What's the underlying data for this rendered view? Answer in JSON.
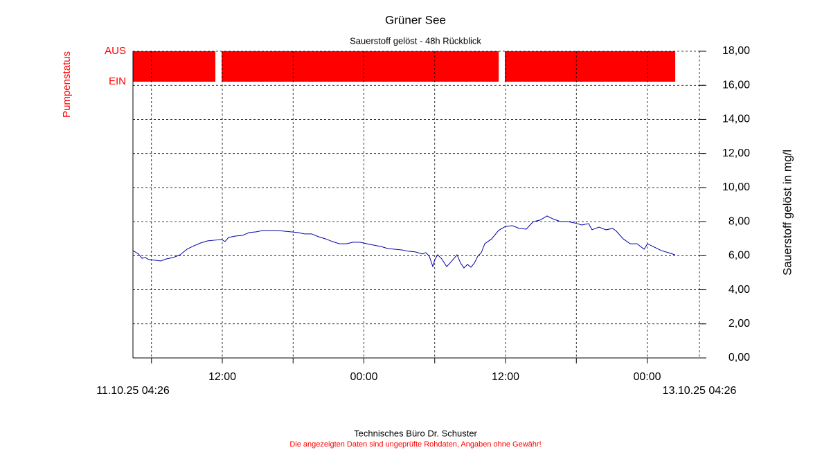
{
  "chart_data": {
    "type": "line",
    "title": "Grüner See",
    "subtitle": "Sauerstoff gelöst - 48h Rückblick",
    "ylabel": "Sauerstoff gelöst in mg/l",
    "ylim": [
      0,
      18
    ],
    "yticks": [
      {
        "value": 0,
        "label": "0,00"
      },
      {
        "value": 2,
        "label": "2,00"
      },
      {
        "value": 4,
        "label": "4,00"
      },
      {
        "value": 6,
        "label": "6,00"
      },
      {
        "value": 8,
        "label": "8,00"
      },
      {
        "value": 10,
        "label": "10,00"
      },
      {
        "value": 12,
        "label": "12,00"
      },
      {
        "value": 14,
        "label": "14,00"
      },
      {
        "value": 16,
        "label": "16,00"
      },
      {
        "value": 18,
        "label": "18,00"
      }
    ],
    "xlim": [
      0,
      48
    ],
    "xlim_labels": [
      "11.10.25 04:26",
      "13.10.25 04:26"
    ],
    "xticks": [
      {
        "value": 1.57,
        "label": null
      },
      {
        "value": 7.57,
        "label": "12:00"
      },
      {
        "value": 13.57,
        "label": null
      },
      {
        "value": 19.57,
        "label": "00:00"
      },
      {
        "value": 25.57,
        "label": null
      },
      {
        "value": 31.57,
        "label": "12:00"
      },
      {
        "value": 37.57,
        "label": null
      },
      {
        "value": 43.57,
        "label": "00:00"
      }
    ],
    "grid": true,
    "series": [
      {
        "name": "Sauerstoff gelöst",
        "color": "#0000aa",
        "x": [
          0,
          0.47,
          0.76,
          1.06,
          1.35,
          1.94,
          2.35,
          2.82,
          3.4,
          3.99,
          4.58,
          5.16,
          5.75,
          6.34,
          6.92,
          7.51,
          7.8,
          8.1,
          8.68,
          9.27,
          9.86,
          10.44,
          11.03,
          11.62,
          12.21,
          12.79,
          13.38,
          13.97,
          14.55,
          15.14,
          15.73,
          16.31,
          16.9,
          17.49,
          18.07,
          18.66,
          19.25,
          19.83,
          20.42,
          21.01,
          21.59,
          22.18,
          22.77,
          23.35,
          23.94,
          24.53,
          24.82,
          25.11,
          25.41,
          25.58,
          25.82,
          26.17,
          26.58,
          26.87,
          27.46,
          27.76,
          28.05,
          28.34,
          28.64,
          28.93,
          29.22,
          29.52,
          29.81,
          30.4,
          30.98,
          31.57,
          32.16,
          32.74,
          33.33,
          33.92,
          34.5,
          35.09,
          35.68,
          36.26,
          36.85,
          37.44,
          38.03,
          38.61,
          38.9,
          39.49,
          40.08,
          40.66,
          40.96,
          41.54,
          42.13,
          42.72,
          43.31,
          43.6,
          44.19,
          44.77,
          45.36,
          45.94
        ],
        "values": [
          6.3,
          6.1,
          5.85,
          5.89,
          5.77,
          5.73,
          5.69,
          5.81,
          5.89,
          6.05,
          6.38,
          6.58,
          6.75,
          6.87,
          6.91,
          6.95,
          6.83,
          7.07,
          7.15,
          7.19,
          7.36,
          7.4,
          7.48,
          7.48,
          7.48,
          7.44,
          7.4,
          7.36,
          7.28,
          7.28,
          7.11,
          6.99,
          6.83,
          6.7,
          6.7,
          6.79,
          6.79,
          6.7,
          6.62,
          6.54,
          6.42,
          6.38,
          6.34,
          6.26,
          6.22,
          6.1,
          6.18,
          5.97,
          5.36,
          5.77,
          6.05,
          5.81,
          5.36,
          5.57,
          6.05,
          5.57,
          5.28,
          5.49,
          5.32,
          5.57,
          5.97,
          6.18,
          6.7,
          6.99,
          7.48,
          7.72,
          7.76,
          7.6,
          7.56,
          8.0,
          8.09,
          8.33,
          8.13,
          8.0,
          8.0,
          7.92,
          7.8,
          7.88,
          7.52,
          7.68,
          7.52,
          7.6,
          7.44,
          6.99,
          6.7,
          6.7,
          6.38,
          6.7,
          6.5,
          6.3,
          6.18,
          6.05
        ]
      }
    ],
    "pump": {
      "title": "Pumpenstatus",
      "levels": [
        "AUS",
        "EIN"
      ],
      "color": "#ff0000",
      "aus_intervals": [
        [
          0,
          6.98
        ],
        [
          7.51,
          30.99
        ],
        [
          31.51,
          45.95
        ]
      ]
    },
    "footer": "Technisches Büro Dr. Schuster",
    "disclaimer": "Die angezeigten Daten sind ungeprüfte Rohdaten, Angaben ohne Gewähr!"
  }
}
